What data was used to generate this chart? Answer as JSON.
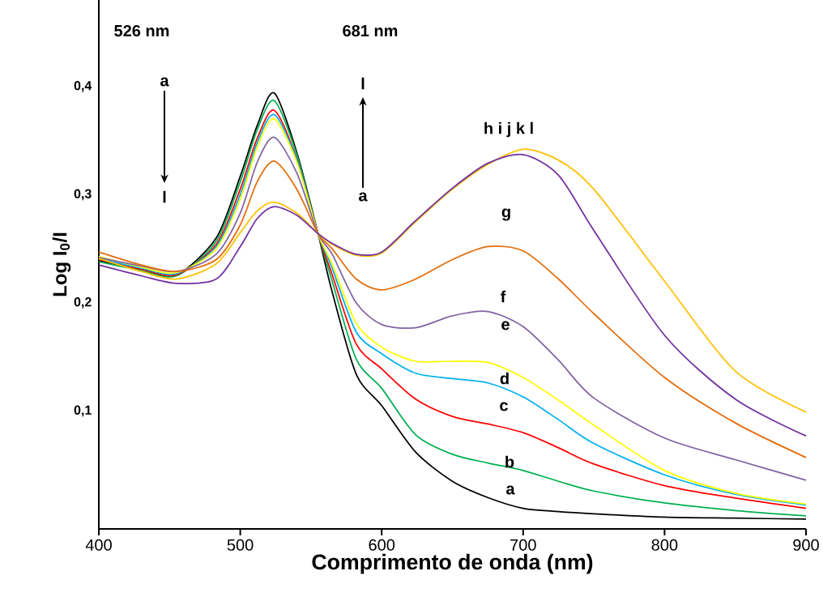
{
  "chart_data": {
    "type": "line",
    "xlabel": "Comprimento de onda (nm)",
    "ylabel": "Log I$_{0}$/I",
    "x": [
      400,
      430,
      455,
      483,
      500,
      512,
      524,
      540,
      555,
      565,
      582,
      600,
      624,
      650,
      675,
      700,
      725,
      750,
      800,
      850,
      900
    ],
    "series": [
      {
        "color": "#000000",
        "values": [
          0.239,
          0.231,
          0.226,
          0.26,
          0.317,
          0.364,
          0.394,
          0.339,
          0.264,
          0.21,
          0.134,
          0.105,
          0.062,
          0.035,
          0.02,
          0.01,
          0.007,
          0.005,
          0.002,
          0.001,
          0.0
        ]
      },
      {
        "color": "#00b050",
        "values": [
          0.238,
          0.23,
          0.225,
          0.257,
          0.312,
          0.36,
          0.387,
          0.337,
          0.264,
          0.22,
          0.148,
          0.121,
          0.078,
          0.06,
          0.052,
          0.045,
          0.035,
          0.026,
          0.015,
          0.008,
          0.003
        ]
      },
      {
        "color": "#ff0000",
        "values": [
          0.24,
          0.231,
          0.226,
          0.254,
          0.305,
          0.352,
          0.378,
          0.333,
          0.264,
          0.226,
          0.162,
          0.139,
          0.111,
          0.095,
          0.088,
          0.08,
          0.066,
          0.051,
          0.031,
          0.0195,
          0.01
        ]
      },
      {
        "color": "#00b0f0",
        "values": [
          0.241,
          0.232,
          0.227,
          0.252,
          0.3,
          0.348,
          0.374,
          0.332,
          0.264,
          0.232,
          0.173,
          0.153,
          0.135,
          0.13,
          0.126,
          0.113,
          0.092,
          0.07,
          0.041,
          0.023,
          0.013
        ]
      },
      {
        "color": "#ffff00",
        "values": [
          0.243,
          0.233,
          0.228,
          0.25,
          0.296,
          0.344,
          0.37,
          0.33,
          0.264,
          0.236,
          0.181,
          0.159,
          0.146,
          0.146,
          0.145,
          0.131,
          0.11,
          0.087,
          0.045,
          0.024,
          0.014
        ]
      },
      {
        "color": "#8064a2",
        "values": [
          0.242,
          0.234,
          0.229,
          0.245,
          0.283,
          0.33,
          0.353,
          0.32,
          0.264,
          0.245,
          0.2,
          0.18,
          0.177,
          0.188,
          0.192,
          0.178,
          0.147,
          0.112,
          0.075,
          0.055,
          0.036
        ]
      },
      {
        "color": "#e46c0a",
        "values": [
          0.247,
          0.235,
          0.229,
          0.24,
          0.272,
          0.312,
          0.331,
          0.305,
          0.264,
          0.25,
          0.222,
          0.212,
          0.222,
          0.24,
          0.252,
          0.248,
          0.222,
          0.19,
          0.131,
          0.089,
          0.057
        ]
      },
      {
        "color": "#ffc000",
        "values": [
          0.241,
          0.229,
          0.222,
          0.236,
          0.265,
          0.285,
          0.293,
          0.283,
          0.264,
          0.254,
          0.244,
          0.246,
          0.275,
          0.305,
          0.328,
          0.342,
          0.332,
          0.305,
          0.22,
          0.137,
          0.099
        ]
      },
      {
        "color": "#7030a0",
        "values": [
          0.235,
          0.225,
          0.218,
          0.222,
          0.252,
          0.278,
          0.289,
          0.281,
          0.264,
          0.255,
          0.245,
          0.247,
          0.276,
          0.306,
          0.329,
          0.337,
          0.318,
          0.267,
          0.17,
          0.111,
          0.077
        ]
      }
    ],
    "annotations": [
      "526 nm",
      "a",
      "l",
      "681 nm",
      "l",
      "a",
      "h i j k l",
      "g",
      "f",
      "e",
      "d",
      "c",
      "b",
      "a"
    ],
    "xlim": [
      400,
      900
    ],
    "ylim": [
      -0.009,
      0.48
    ],
    "xticks": [
      400,
      500,
      600,
      700,
      800,
      900
    ],
    "yticks": [
      {
        "value": 0.1,
        "label": "0,1"
      },
      {
        "value": 0.2,
        "label": "0,2"
      },
      {
        "value": 0.3,
        "label": "0,3"
      },
      {
        "value": 0.4,
        "label": "0,4"
      }
    ]
  }
}
